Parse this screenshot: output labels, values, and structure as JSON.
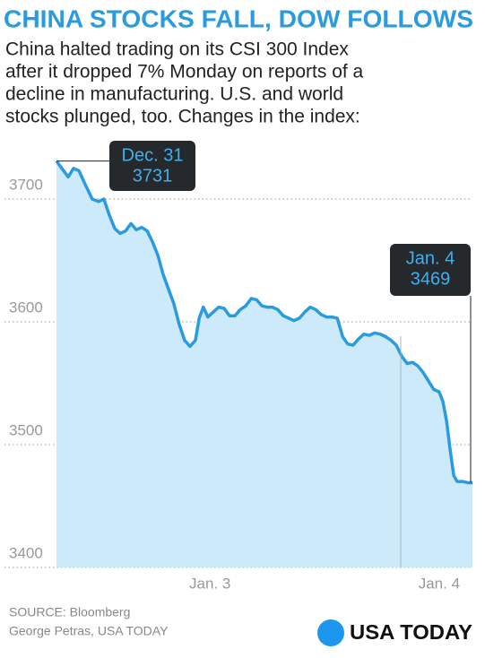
{
  "chart_data": {
    "type": "area",
    "title": "CHINA STOCKS FALL, DOW FOLLOWS",
    "subtitle": [
      "China halted trading on its CSI 300 Index",
      "after it dropped 7% Monday on reports of a",
      "decline in manufacturing. U.S. and world",
      "stocks plunged, too. Changes in the index:"
    ],
    "color": "#2b9be0",
    "fill": "#cdeafb",
    "x": [
      0,
      1.5,
      2.8,
      4.1,
      5.4,
      6.9,
      8.6,
      10.1,
      11.4,
      12.7,
      14.0,
      15.3,
      16.6,
      17.9,
      19.2,
      20.5,
      21.8,
      23.1,
      24.4,
      25.6,
      26.9,
      28.2,
      29.5,
      30.8,
      32.1,
      33.4,
      34.3,
      35.3,
      36.4,
      37.7,
      39.0,
      40.3,
      41.6,
      42.9,
      44.2,
      45.5,
      46.8,
      48.1,
      49.4,
      50.6,
      51.9,
      53.2,
      54.5,
      55.8,
      57.1,
      58.4,
      59.7,
      61.0,
      62.3,
      63.6,
      64.9,
      66.2,
      67.5,
      68.8,
      70.0,
      71.3,
      72.6,
      73.9,
      75.2,
      76.5,
      77.8,
      79.1,
      80.4,
      81.7,
      83.0,
      84.3,
      85.6,
      86.9,
      88.1,
      89.4,
      90.7,
      92.0,
      92.9,
      93.8,
      94.6,
      95.5,
      96.3,
      97.6,
      98.9,
      100
    ],
    "values": [
      3731,
      3724,
      3718,
      3725,
      3723,
      3712,
      3700,
      3698,
      3700,
      3687,
      3676,
      3672,
      3674,
      3680,
      3675,
      3677,
      3674,
      3665,
      3654,
      3639,
      3627,
      3615,
      3598,
      3585,
      3580,
      3585,
      3603,
      3612,
      3604,
      3608,
      3612,
      3611,
      3605,
      3605,
      3610,
      3613,
      3619,
      3618,
      3613,
      3612,
      3612,
      3610,
      3605,
      3603,
      3601,
      3603,
      3608,
      3612,
      3610,
      3606,
      3604,
      3604,
      3603,
      3588,
      3582,
      3581,
      3586,
      3590,
      3589,
      3591,
      3590,
      3588,
      3585,
      3581,
      3572,
      3566,
      3567,
      3564,
      3559,
      3552,
      3545,
      3543,
      3535,
      3519,
      3497,
      3475,
      3470,
      3470,
      3469,
      3469
    ],
    "xlim": [
      0,
      100
    ],
    "xticks": [
      {
        "value": 36.9,
        "label": "Jan. 3"
      },
      {
        "value": 92.0,
        "label": "Jan. 4"
      }
    ],
    "ylim": [
      3400,
      3738
    ],
    "yticks": [
      3400,
      3500,
      3600,
      3700
    ],
    "grid": true,
    "annotations": [
      {
        "label": "Dec. 31",
        "value": 3731,
        "x": 0
      },
      {
        "label": "Jan. 4",
        "value": 3469,
        "x": 100
      }
    ],
    "source": "SOURCE:  Bloomberg",
    "credit": "George Petras, USA TODAY",
    "logo": "USA TODAY"
  }
}
